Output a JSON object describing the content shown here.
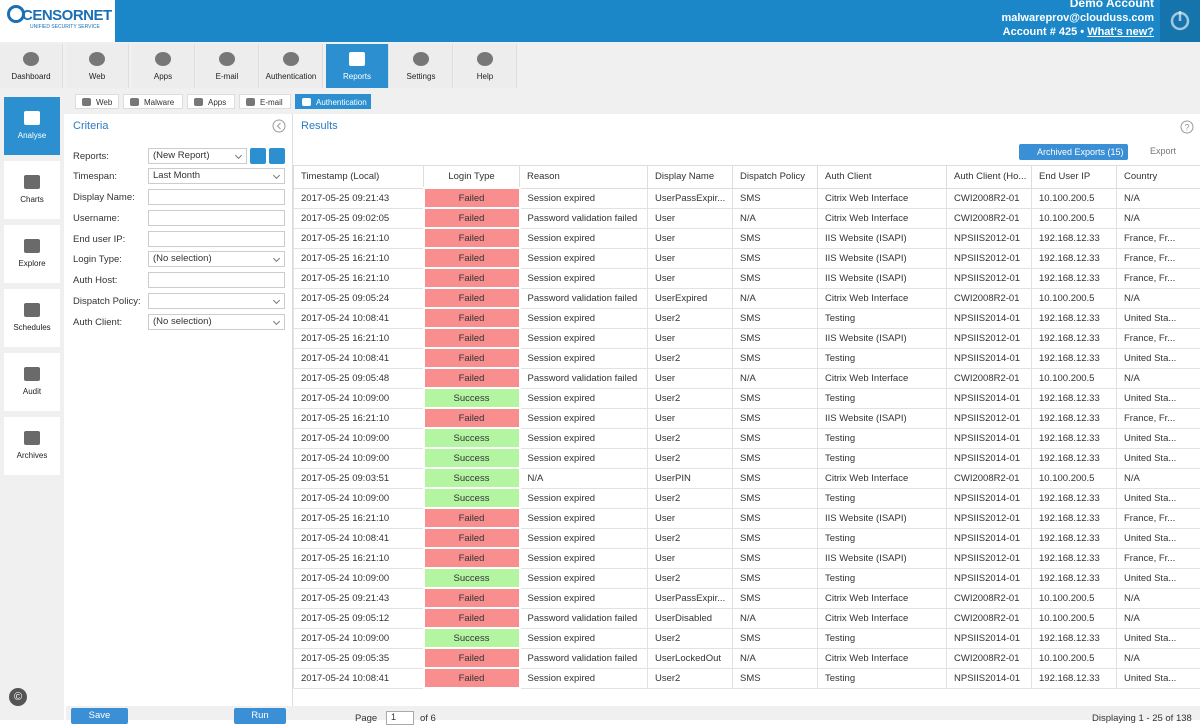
{
  "header": {
    "brand": "CENSORNET",
    "tagline": "UNIFIED SECURITY SERVICE",
    "account_name": "Demo Account",
    "email": "malwareprov@clouduss.com",
    "account": "Account # 425 •",
    "whats_new": "What's new?"
  },
  "nav": [
    "Dashboard",
    "Web",
    "Apps",
    "E-mail",
    "Authentication",
    "Reports",
    "Settings",
    "Help"
  ],
  "nav_active": 5,
  "sidebar": [
    "Analyse",
    "Charts",
    "Explore",
    "Schedules",
    "Audit",
    "Archives"
  ],
  "sidebar_active": 0,
  "subtabs": [
    "Web",
    "Malware",
    "Apps",
    "E-mail",
    "Authentication"
  ],
  "subtabs_active": 4,
  "criteria": {
    "title": "Criteria",
    "fields": [
      {
        "label": "Reports:",
        "value": "(New Report)"
      },
      {
        "label": "Timespan:",
        "value": "Last Month"
      },
      {
        "label": "Display Name:",
        "value": ""
      },
      {
        "label": "Username:",
        "value": ""
      },
      {
        "label": "End user IP:",
        "value": ""
      },
      {
        "label": "Login Type:",
        "value": "(No selection)"
      },
      {
        "label": "Auth Host:",
        "value": ""
      },
      {
        "label": "Dispatch Policy:",
        "value": ""
      },
      {
        "label": "Auth Client:",
        "value": "(No selection)"
      }
    ]
  },
  "results": {
    "title": "Results",
    "archived_exports": "Archived Exports (15)",
    "export": "Export"
  },
  "table": {
    "columns": [
      "Timestamp (Local)",
      "Login Type",
      "Reason",
      "Display Name",
      "Dispatch Policy",
      "Auth Client",
      "Auth Client (Ho...",
      "End User IP",
      "Country"
    ],
    "rows": [
      [
        "2017-05-25 09:21:43",
        "Failed",
        "Session expired",
        "UserPassExpir...",
        "SMS",
        "Citrix Web Interface",
        "CWI2008R2-01",
        "10.100.200.5",
        "N/A"
      ],
      [
        "2017-05-25 09:02:05",
        "Failed",
        "Password validation failed",
        "User",
        "N/A",
        "Citrix Web Interface",
        "CWI2008R2-01",
        "10.100.200.5",
        "N/A"
      ],
      [
        "2017-05-25 16:21:10",
        "Failed",
        "Session expired",
        "User",
        "SMS",
        "IIS Website (ISAPI)",
        "NPSIIS2012-01",
        "192.168.12.33",
        "France, Fr..."
      ],
      [
        "2017-05-25 16:21:10",
        "Failed",
        "Session expired",
        "User",
        "SMS",
        "IIS Website (ISAPI)",
        "NPSIIS2012-01",
        "192.168.12.33",
        "France, Fr..."
      ],
      [
        "2017-05-25 16:21:10",
        "Failed",
        "Session expired",
        "User",
        "SMS",
        "IIS Website (ISAPI)",
        "NPSIIS2012-01",
        "192.168.12.33",
        "France, Fr..."
      ],
      [
        "2017-05-25 09:05:24",
        "Failed",
        "Password validation failed",
        "UserExpired",
        "N/A",
        "Citrix Web Interface",
        "CWI2008R2-01",
        "10.100.200.5",
        "N/A"
      ],
      [
        "2017-05-24 10:08:41",
        "Failed",
        "Session expired",
        "User2",
        "SMS",
        "Testing",
        "NPSIIS2014-01",
        "192.168.12.33",
        "United Sta..."
      ],
      [
        "2017-05-25 16:21:10",
        "Failed",
        "Session expired",
        "User",
        "SMS",
        "IIS Website (ISAPI)",
        "NPSIIS2012-01",
        "192.168.12.33",
        "France, Fr..."
      ],
      [
        "2017-05-24 10:08:41",
        "Failed",
        "Session expired",
        "User2",
        "SMS",
        "Testing",
        "NPSIIS2014-01",
        "192.168.12.33",
        "United Sta..."
      ],
      [
        "2017-05-25 09:05:48",
        "Failed",
        "Password validation failed",
        "User",
        "N/A",
        "Citrix Web Interface",
        "CWI2008R2-01",
        "10.100.200.5",
        "N/A"
      ],
      [
        "2017-05-24 10:09:00",
        "Success",
        "Session expired",
        "User2",
        "SMS",
        "Testing",
        "NPSIIS2014-01",
        "192.168.12.33",
        "United Sta..."
      ],
      [
        "2017-05-25 16:21:10",
        "Failed",
        "Session expired",
        "User",
        "SMS",
        "IIS Website (ISAPI)",
        "NPSIIS2012-01",
        "192.168.12.33",
        "France, Fr..."
      ],
      [
        "2017-05-24 10:09:00",
        "Success",
        "Session expired",
        "User2",
        "SMS",
        "Testing",
        "NPSIIS2014-01",
        "192.168.12.33",
        "United Sta..."
      ],
      [
        "2017-05-24 10:09:00",
        "Success",
        "Session expired",
        "User2",
        "SMS",
        "Testing",
        "NPSIIS2014-01",
        "192.168.12.33",
        "United Sta..."
      ],
      [
        "2017-05-25 09:03:51",
        "Success",
        "N/A",
        "UserPIN",
        "SMS",
        "Citrix Web Interface",
        "CWI2008R2-01",
        "10.100.200.5",
        "N/A"
      ],
      [
        "2017-05-24 10:09:00",
        "Success",
        "Session expired",
        "User2",
        "SMS",
        "Testing",
        "NPSIIS2014-01",
        "192.168.12.33",
        "United Sta..."
      ],
      [
        "2017-05-25 16:21:10",
        "Failed",
        "Session expired",
        "User",
        "SMS",
        "IIS Website (ISAPI)",
        "NPSIIS2012-01",
        "192.168.12.33",
        "France, Fr..."
      ],
      [
        "2017-05-24 10:08:41",
        "Failed",
        "Session expired",
        "User2",
        "SMS",
        "Testing",
        "NPSIIS2014-01",
        "192.168.12.33",
        "United Sta..."
      ],
      [
        "2017-05-25 16:21:10",
        "Failed",
        "Session expired",
        "User",
        "SMS",
        "IIS Website (ISAPI)",
        "NPSIIS2012-01",
        "192.168.12.33",
        "France, Fr..."
      ],
      [
        "2017-05-24 10:09:00",
        "Success",
        "Session expired",
        "User2",
        "SMS",
        "Testing",
        "NPSIIS2014-01",
        "192.168.12.33",
        "United Sta..."
      ],
      [
        "2017-05-25 09:21:43",
        "Failed",
        "Session expired",
        "UserPassExpir...",
        "SMS",
        "Citrix Web Interface",
        "CWI2008R2-01",
        "10.100.200.5",
        "N/A"
      ],
      [
        "2017-05-25 09:05:12",
        "Failed",
        "Password validation failed",
        "UserDisabled",
        "N/A",
        "Citrix Web Interface",
        "CWI2008R2-01",
        "10.100.200.5",
        "N/A"
      ],
      [
        "2017-05-24 10:09:00",
        "Success",
        "Session expired",
        "User2",
        "SMS",
        "Testing",
        "NPSIIS2014-01",
        "192.168.12.33",
        "United Sta..."
      ],
      [
        "2017-05-25 09:05:35",
        "Failed",
        "Password validation failed",
        "UserLockedOut",
        "N/A",
        "Citrix Web Interface",
        "CWI2008R2-01",
        "10.100.200.5",
        "N/A"
      ],
      [
        "2017-05-24 10:08:41",
        "Failed",
        "Session expired",
        "User2",
        "SMS",
        "Testing",
        "NPSIIS2014-01",
        "192.168.12.33",
        "United Sta..."
      ]
    ]
  },
  "footer": {
    "save": "Save",
    "run": "Run",
    "page_label": "Page",
    "page": "1",
    "of": "of 6",
    "displaying": "Displaying 1 - 25 of 138"
  }
}
